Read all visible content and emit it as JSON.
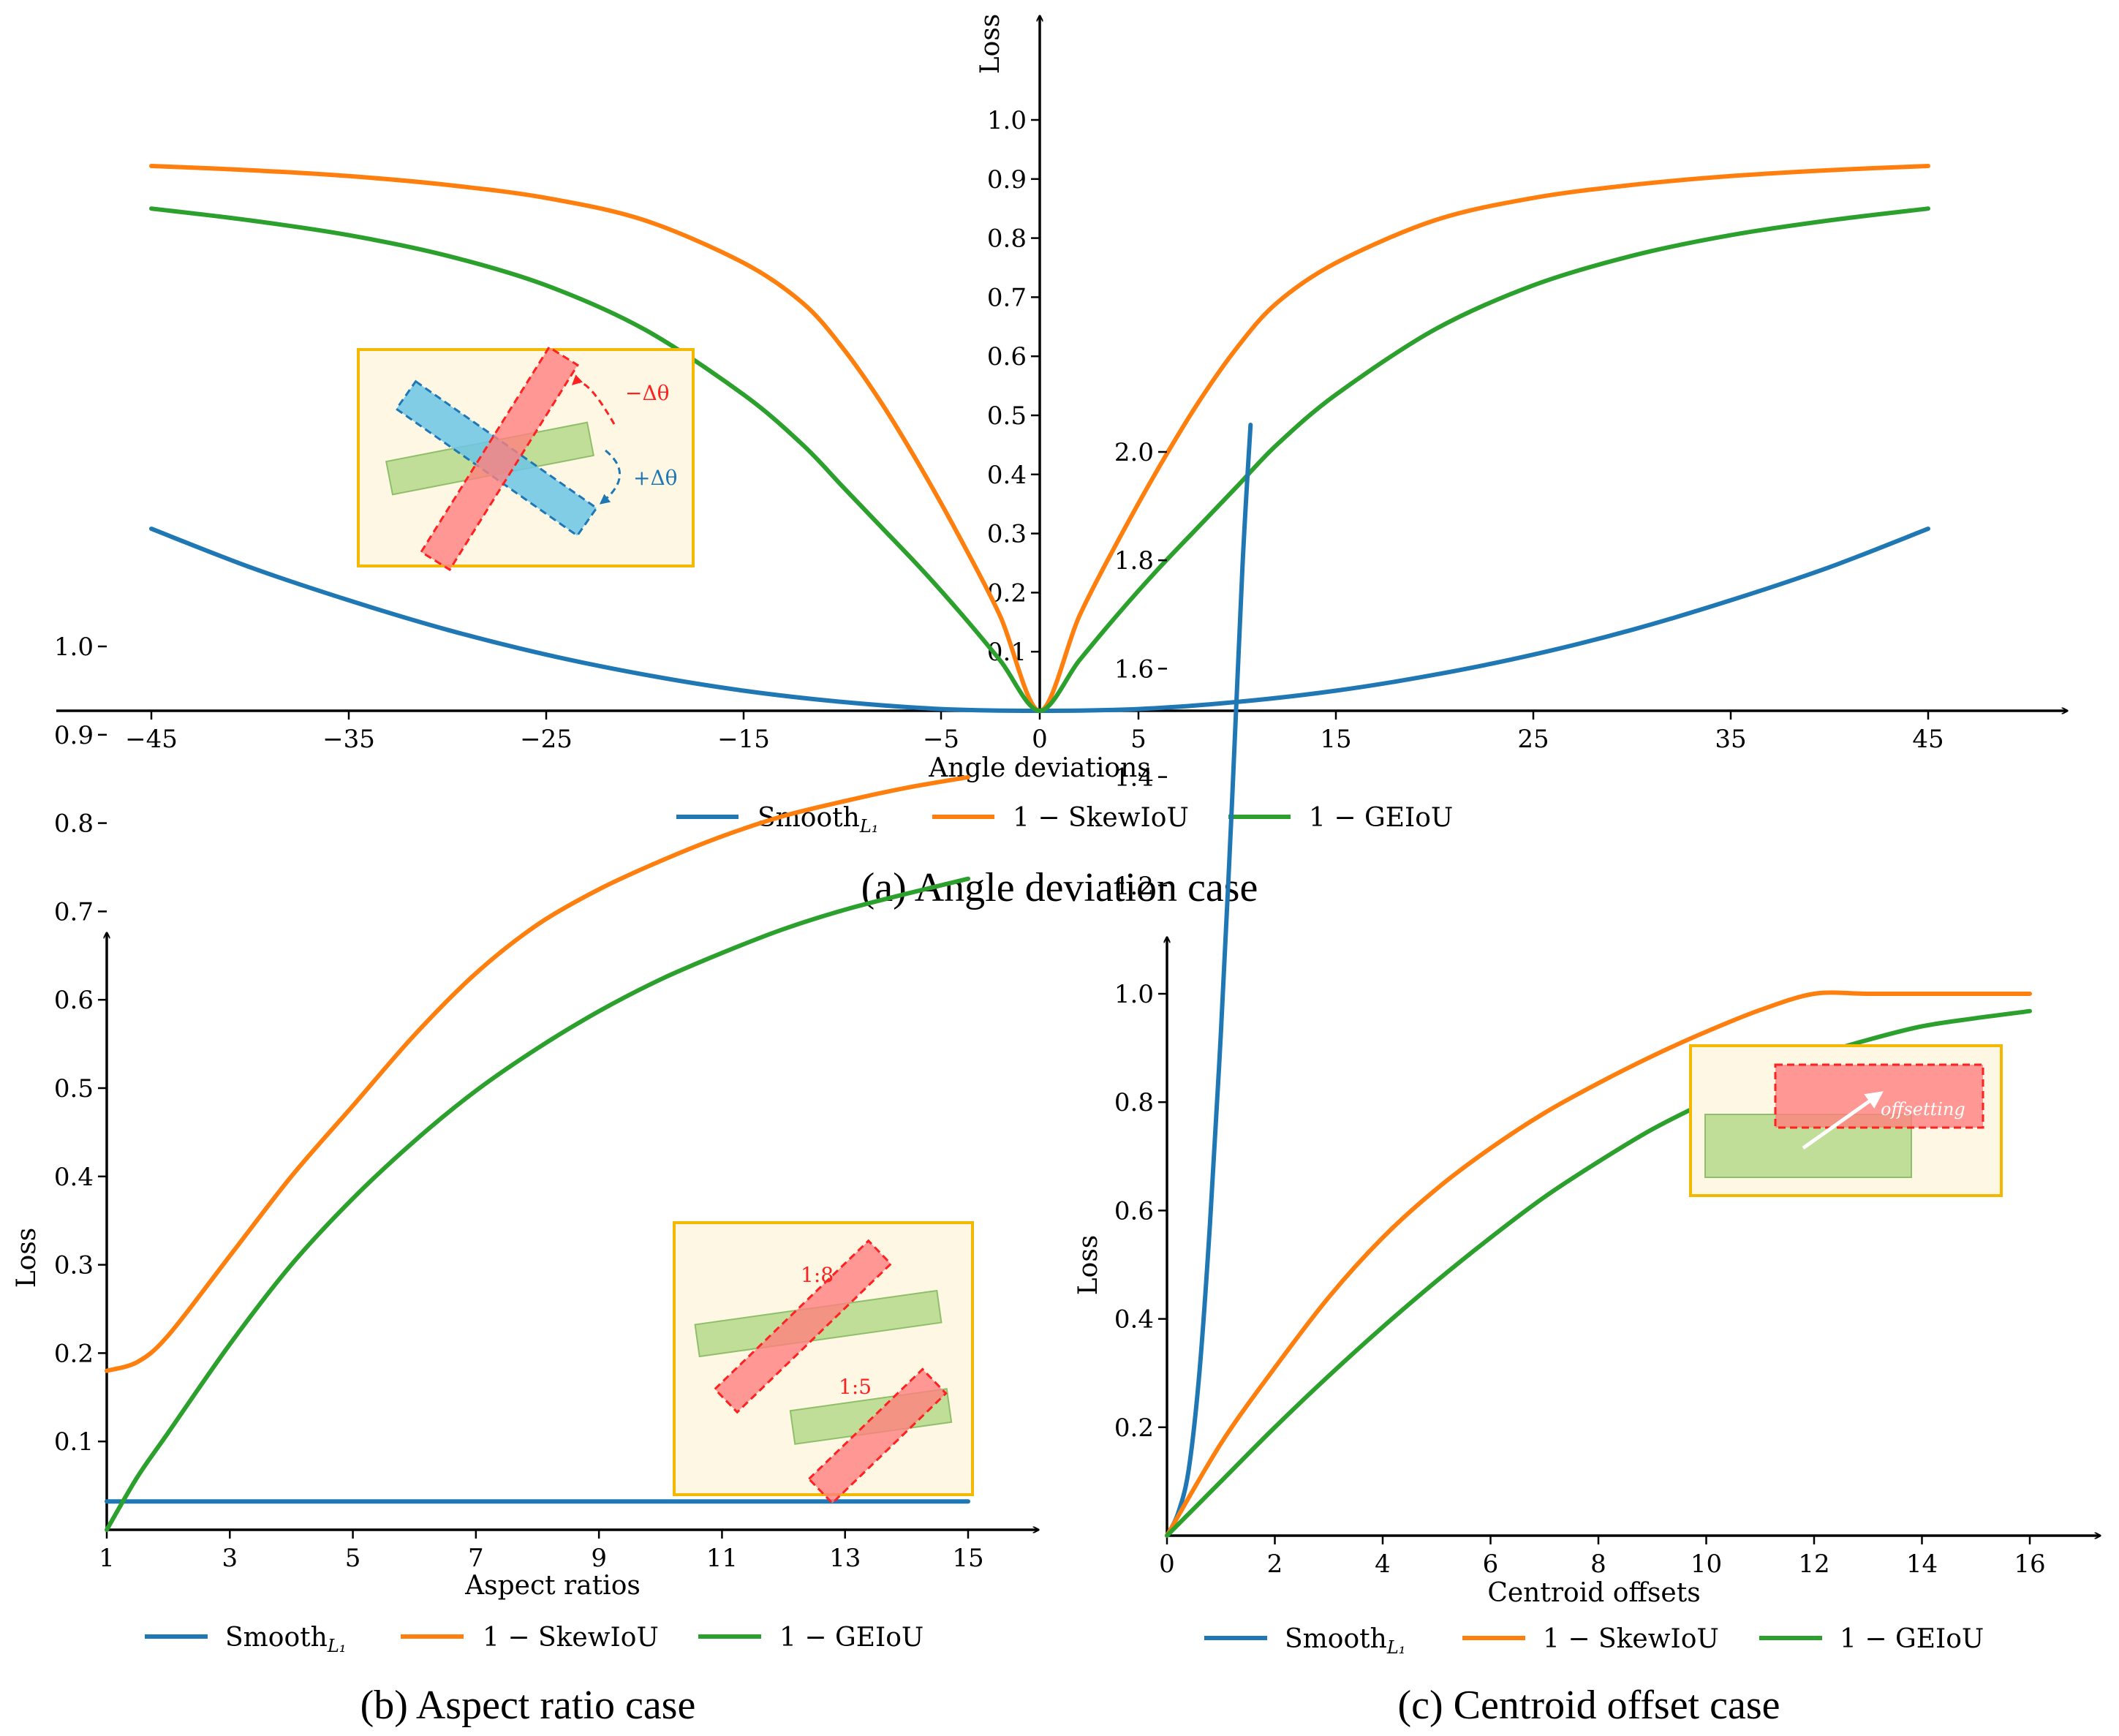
{
  "colors": {
    "smooth": "#1f77b4",
    "skew": "#ff7f0e",
    "geiou": "#2ca02c",
    "inset_border": "#f5b800",
    "inset_fill": "#fdf7e3",
    "red": "#ff2020",
    "blue_box": "#6cc6e6",
    "green_box": "#b5d98a"
  },
  "legend": {
    "smooth_label": "Smooth",
    "smooth_sub": "L₁",
    "skew_label": "1 − SkewIoU",
    "geiou_label": "1 − GEIoU"
  },
  "inset_labels": {
    "minus_dtheta": "−Δθ",
    "plus_dtheta": "+Δθ",
    "ratio_1_8": "1:8",
    "ratio_1_5": "1:5",
    "offsetting": "offsetting"
  },
  "chart_data": [
    {
      "id": "a",
      "type": "line",
      "caption": "(a) Angle deviation case",
      "xlabel": "Angle deviations",
      "ylabel": "Loss",
      "xlim": [
        -50,
        50
      ],
      "ylim": [
        0,
        1.1
      ],
      "xticks": [
        -45,
        -35,
        -25,
        -15,
        -5,
        0,
        5,
        15,
        25,
        35,
        45
      ],
      "yticks": [
        0.1,
        0.2,
        0.3,
        0.4,
        0.5,
        0.6,
        0.7,
        0.8,
        0.9,
        1.0
      ],
      "grid": false,
      "legend_position": "bottom",
      "series": [
        {
          "name": "Smooth_L1",
          "key": "smooth",
          "x": [
            -45,
            -40,
            -35,
            -30,
            -25,
            -20,
            -15,
            -10,
            -5,
            0,
            5,
            10,
            15,
            20,
            25,
            30,
            35,
            40,
            45
          ],
          "y": [
            0.308,
            0.243,
            0.187,
            0.137,
            0.095,
            0.061,
            0.034,
            0.015,
            0.003,
            0.0,
            0.003,
            0.015,
            0.034,
            0.061,
            0.095,
            0.137,
            0.187,
            0.243,
            0.308
          ]
        },
        {
          "name": "1 - SkewIoU",
          "key": "skew",
          "x": [
            -45,
            -40,
            -35,
            -30,
            -25,
            -20,
            -15,
            -12,
            -10,
            -8,
            -6,
            -4,
            -2,
            0,
            2,
            4,
            6,
            8,
            10,
            12,
            15,
            20,
            25,
            30,
            35,
            40,
            45
          ],
          "y": [
            0.922,
            0.915,
            0.905,
            0.89,
            0.868,
            0.83,
            0.758,
            0.69,
            0.615,
            0.52,
            0.41,
            0.29,
            0.16,
            0.0,
            0.16,
            0.29,
            0.41,
            0.52,
            0.615,
            0.69,
            0.758,
            0.83,
            0.868,
            0.89,
            0.905,
            0.915,
            0.922
          ]
        },
        {
          "name": "1 - GEIoU",
          "key": "geiou",
          "x": [
            -45,
            -40,
            -35,
            -30,
            -25,
            -20,
            -15,
            -12,
            -10,
            -8,
            -6,
            -4,
            -2,
            0,
            2,
            4,
            6,
            8,
            10,
            12,
            15,
            20,
            25,
            30,
            35,
            40,
            45
          ],
          "y": [
            0.85,
            0.83,
            0.805,
            0.77,
            0.72,
            0.645,
            0.535,
            0.45,
            0.38,
            0.31,
            0.24,
            0.165,
            0.085,
            0.0,
            0.085,
            0.165,
            0.24,
            0.31,
            0.38,
            0.45,
            0.535,
            0.645,
            0.72,
            0.77,
            0.805,
            0.83,
            0.85
          ]
        }
      ]
    },
    {
      "id": "b",
      "type": "line",
      "caption": "(b) Aspect ratio case",
      "xlabel": "Aspect ratios",
      "ylabel": "Loss",
      "xlim": [
        1,
        16.2
      ],
      "ylim": [
        0,
        1.08
      ],
      "xticks": [
        1,
        3,
        5,
        7,
        9,
        11,
        13,
        15
      ],
      "yticks": [
        0.1,
        0.2,
        0.3,
        0.4,
        0.5,
        0.6,
        0.7,
        0.8,
        0.9,
        1.0
      ],
      "grid": false,
      "legend_position": "bottom",
      "series": [
        {
          "name": "Smooth_L1",
          "key": "smooth",
          "x": [
            1,
            15
          ],
          "y": [
            0.032,
            0.032
          ]
        },
        {
          "name": "1 - SkewIoU",
          "key": "skew",
          "x": [
            1,
            1.5,
            2,
            3,
            4,
            5,
            6,
            7,
            8,
            9,
            10,
            11,
            12,
            13,
            14,
            15
          ],
          "y": [
            0.18,
            0.19,
            0.22,
            0.31,
            0.4,
            0.48,
            0.56,
            0.63,
            0.685,
            0.725,
            0.757,
            0.785,
            0.808,
            0.825,
            0.84,
            0.852
          ]
        },
        {
          "name": "1 - GEIoU",
          "key": "geiou",
          "x": [
            1,
            1.5,
            2,
            3,
            4,
            5,
            6,
            7,
            8,
            9,
            10,
            11,
            12,
            13,
            14,
            15
          ],
          "y": [
            0.0,
            0.06,
            0.11,
            0.21,
            0.3,
            0.375,
            0.44,
            0.497,
            0.545,
            0.587,
            0.623,
            0.653,
            0.68,
            0.702,
            0.72,
            0.737
          ]
        }
      ]
    },
    {
      "id": "c",
      "type": "line",
      "caption": "(c) Centroid offset case",
      "xlabel": "Centroid offsets",
      "ylabel": "Loss",
      "xlim": [
        0,
        17.3
      ],
      "ylim": [
        0,
        2.1
      ],
      "xticks": [
        0,
        2,
        4,
        6,
        8,
        10,
        12,
        14,
        16
      ],
      "yticks": [
        0.2,
        0.4,
        0.6,
        0.8,
        1.0,
        1.2,
        1.4,
        1.6,
        1.8,
        2.0
      ],
      "grid": false,
      "legend_position": "bottom",
      "series": [
        {
          "name": "Smooth_L1",
          "key": "smooth",
          "x": [
            0,
            0.2,
            0.4,
            0.6,
            0.8,
            1.0,
            1.2,
            1.4,
            1.55
          ],
          "y": [
            0.0,
            0.04,
            0.12,
            0.3,
            0.58,
            0.93,
            1.34,
            1.79,
            2.05
          ]
        },
        {
          "name": "1 - SkewIoU",
          "key": "skew",
          "x": [
            0,
            1,
            2,
            3,
            4,
            5,
            6,
            7,
            8,
            9,
            10,
            11,
            12,
            13,
            14,
            15,
            16
          ],
          "y": [
            0.0,
            0.17,
            0.31,
            0.44,
            0.55,
            0.64,
            0.715,
            0.78,
            0.835,
            0.885,
            0.93,
            0.97,
            1.0,
            1.0,
            1.0,
            1.0,
            1.0
          ]
        },
        {
          "name": "1 - GEIoU",
          "key": "geiou",
          "x": [
            0,
            1,
            2,
            3,
            4,
            5,
            6,
            7,
            8,
            9,
            10,
            11,
            12,
            13,
            14,
            15,
            16
          ],
          "y": [
            0.0,
            0.1,
            0.2,
            0.295,
            0.385,
            0.47,
            0.55,
            0.625,
            0.69,
            0.75,
            0.8,
            0.845,
            0.885,
            0.915,
            0.94,
            0.955,
            0.968
          ]
        }
      ]
    }
  ]
}
